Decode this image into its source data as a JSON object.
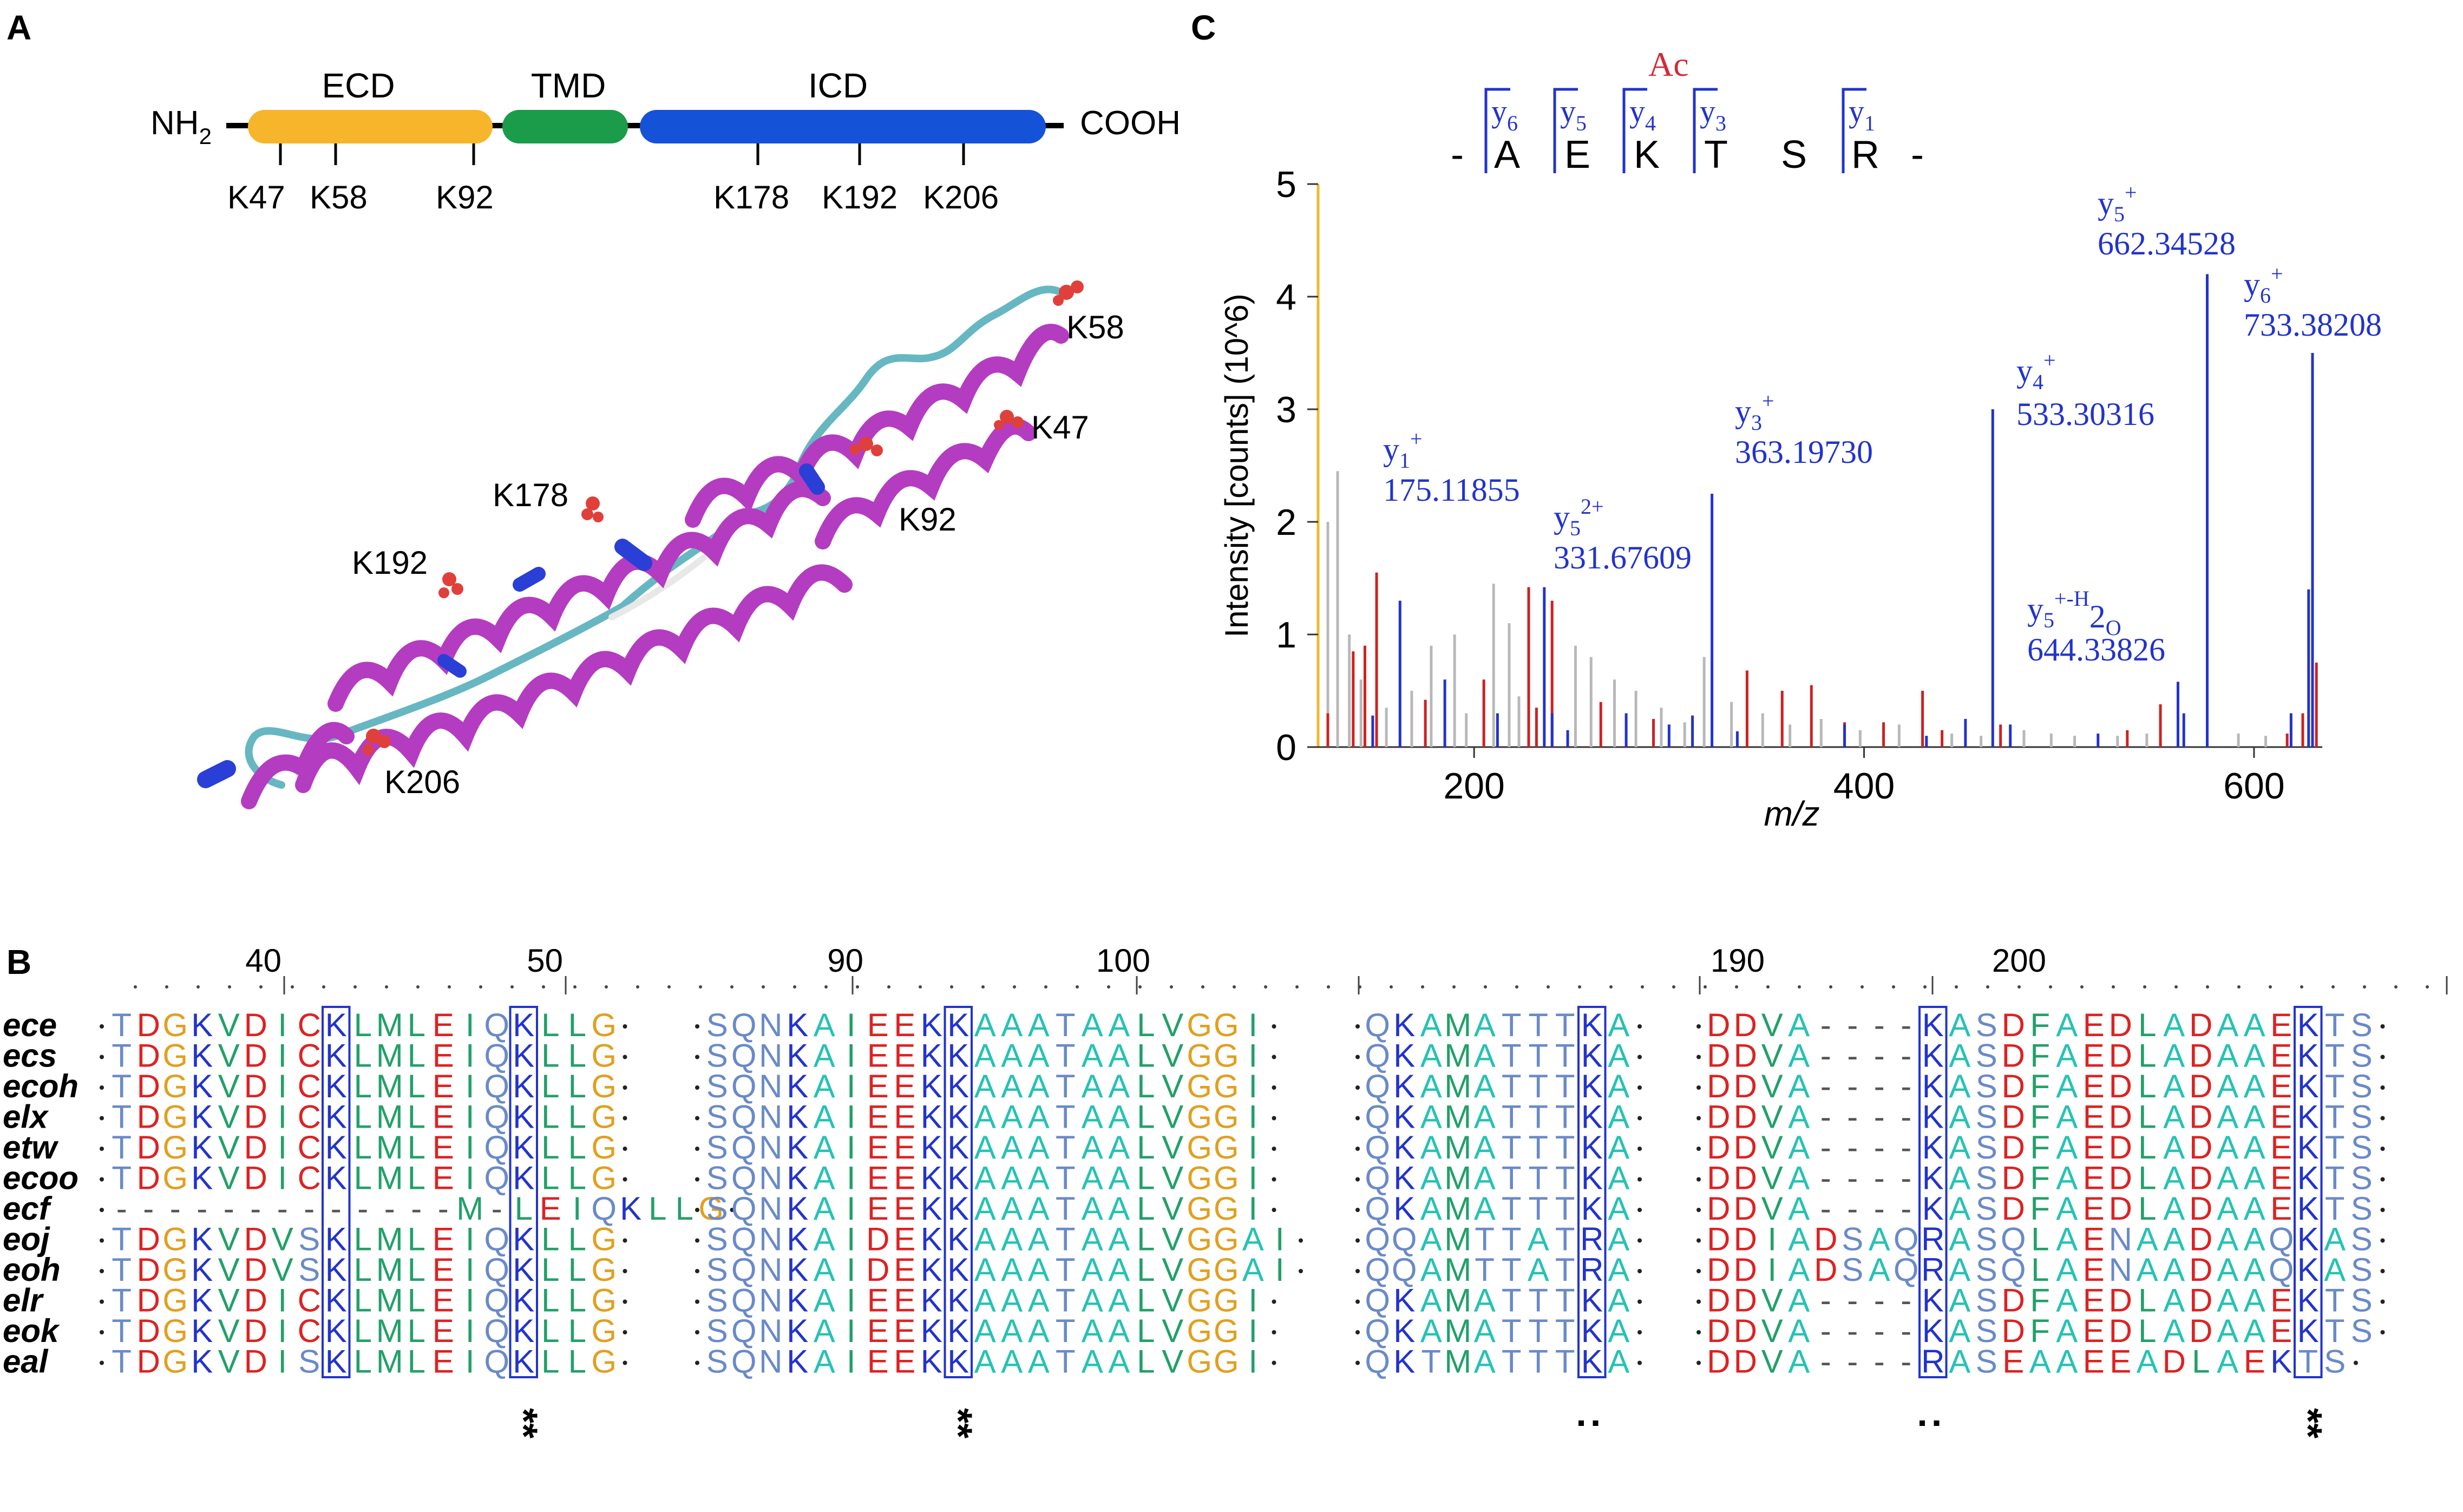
{
  "panels": {
    "a": "A",
    "b": "B",
    "c": "C"
  },
  "panel_a": {
    "nterm": "NH",
    "nterm_sub": "2",
    "cterm": "COOH",
    "domains": [
      {
        "name": "ECD",
        "color": "#f7b52c"
      },
      {
        "name": "TMD",
        "color": "#1a9c4a"
      },
      {
        "name": "ICD",
        "color": "#1452d8"
      }
    ],
    "sites": [
      "K47",
      "K58",
      "K92",
      "K178",
      "K192",
      "K206"
    ],
    "structure_labels": [
      "K58",
      "K47",
      "K178",
      "K92",
      "K192",
      "K206"
    ],
    "structure_colors": {
      "helix": "#b43cc0",
      "turn": "#2a3fd6",
      "coil": "#66b7c2",
      "lysine": "#e0403a"
    }
  },
  "panel_c": {
    "chart_data": {
      "type": "bar",
      "title": "",
      "xlabel": "m/z",
      "ylabel": "Intensity [counts] (10^6)",
      "xlim": [
        120,
        635
      ],
      "ylim": [
        0,
        5
      ],
      "xticks": [
        200,
        400,
        600
      ],
      "yticks": [
        0,
        1,
        2,
        3,
        4,
        5
      ],
      "peptide": {
        "modification": "Ac",
        "prefix": "-",
        "residues": [
          "A",
          "E",
          "K",
          "T",
          "S",
          "R"
        ],
        "suffix": "-",
        "ions": [
          {
            "ion": "y",
            "num": "6"
          },
          {
            "ion": "y",
            "num": "5"
          },
          {
            "ion": "y",
            "num": "4"
          },
          {
            "ion": "y",
            "num": "3"
          },
          {
            "ion": "y",
            "num": "1"
          }
        ]
      },
      "labeled_peaks": [
        {
          "name": "y",
          "sub": "1",
          "sup": "+",
          "mz_text": "175.11855",
          "mz": 148,
          "intensity": 1.55
        },
        {
          "name": "y",
          "sub": "5",
          "sup": "2+",
          "mz_text": "331.67609",
          "mz": 236,
          "intensity": 1.42
        },
        {
          "name": "y",
          "sub": "3",
          "sup": "+",
          "mz_text": "363.19730",
          "mz": 322,
          "intensity": 2.25
        },
        {
          "name": "y",
          "sub": "4",
          "sup": "+",
          "mz_text": "533.30316",
          "mz": 466,
          "intensity": 3.0
        },
        {
          "name": "y",
          "sub": "5",
          "sup": "+-H",
          "sup2": "2",
          "sup3": "O",
          "mz_text": "644.33826",
          "mz": 561,
          "intensity": 0.58
        },
        {
          "name": "y",
          "sub": "5",
          "sup": "+",
          "mz_text": "662.34528",
          "mz": 576,
          "intensity": 4.2
        },
        {
          "name": "y",
          "sub": "6",
          "sup": "+",
          "mz_text": "733.38208",
          "mz": 630,
          "intensity": 3.5
        }
      ],
      "series": [
        {
          "name": "matched",
          "color": "#2233cc",
          "points": [
            [
              148,
              0.28
            ],
            [
              162,
              1.3
            ],
            [
              185,
              0.6
            ],
            [
              212,
              0.3
            ],
            [
              236,
              1.42
            ],
            [
              240,
              0.3
            ],
            [
              248,
              0.15
            ],
            [
              278,
              0.3
            ],
            [
              300,
              0.2
            ],
            [
              312,
              0.28
            ],
            [
              322,
              2.25
            ],
            [
              335,
              0.14
            ],
            [
              390,
              0.2
            ],
            [
              432,
              0.1
            ],
            [
              452,
              0.25
            ],
            [
              466,
              3.0
            ],
            [
              475,
              0.2
            ],
            [
              520,
              0.12
            ],
            [
              561,
              0.58
            ],
            [
              564,
              0.3
            ],
            [
              576,
              4.2
            ],
            [
              630,
              3.5
            ],
            [
              628,
              1.4
            ],
            [
              619,
              0.3
            ]
          ]
        },
        {
          "name": "modified",
          "color": "#cc2222",
          "points": [
            [
              125,
              0.3
            ],
            [
              138,
              0.85
            ],
            [
              144,
              0.9
            ],
            [
              150,
              1.55
            ],
            [
              175,
              0.42
            ],
            [
              205,
              0.6
            ],
            [
              228,
              1.42
            ],
            [
              232,
              0.35
            ],
            [
              240,
              1.3
            ],
            [
              265,
              0.4
            ],
            [
              292,
              0.25
            ],
            [
              340,
              0.68
            ],
            [
              358,
              0.5
            ],
            [
              373,
              0.55
            ],
            [
              390,
              0.22
            ],
            [
              410,
              0.22
            ],
            [
              430,
              0.5
            ],
            [
              440,
              0.15
            ],
            [
              470,
              0.2
            ],
            [
              535,
              0.15
            ],
            [
              552,
              0.38
            ],
            [
              617,
              0.12
            ],
            [
              625,
              0.3
            ],
            [
              632,
              0.75
            ]
          ]
        },
        {
          "name": "unassigned",
          "color": "#b8b8b8",
          "points": [
            [
              125,
              2.0
            ],
            [
              130,
              2.45
            ],
            [
              136,
              1.0
            ],
            [
              142,
              0.6
            ],
            [
              155,
              0.35
            ],
            [
              168,
              0.5
            ],
            [
              178,
              0.9
            ],
            [
              190,
              1.0
            ],
            [
              196,
              0.3
            ],
            [
              210,
              1.45
            ],
            [
              218,
              1.1
            ],
            [
              223,
              0.45
            ],
            [
              252,
              0.9
            ],
            [
              260,
              0.8
            ],
            [
              272,
              0.6
            ],
            [
              283,
              0.5
            ],
            [
              296,
              0.35
            ],
            [
              308,
              0.22
            ],
            [
              318,
              0.8
            ],
            [
              332,
              0.4
            ],
            [
              348,
              0.3
            ],
            [
              362,
              0.2
            ],
            [
              378,
              0.25
            ],
            [
              398,
              0.15
            ],
            [
              418,
              0.2
            ],
            [
              445,
              0.12
            ],
            [
              460,
              0.1
            ],
            [
              482,
              0.15
            ],
            [
              496,
              0.12
            ],
            [
              508,
              0.1
            ],
            [
              530,
              0.1
            ],
            [
              545,
              0.12
            ],
            [
              592,
              0.12
            ],
            [
              606,
              0.1
            ]
          ]
        }
      ]
    }
  },
  "panel_b": {
    "ruler": [
      {
        "ticks": [
          "40",
          "50"
        ],
        "mid": "."
      },
      {
        "ticks": [
          "90",
          "100"
        ]
      },
      {
        "ticks": []
      },
      {
        "ticks": [
          "190",
          "200"
        ]
      }
    ],
    "species": [
      "ece",
      "ecs",
      "ecoh",
      "elx",
      "etw",
      "ecoo",
      "ecf",
      "eoj",
      "eoh",
      "elr",
      "eok",
      "eal"
    ],
    "blocks": [
      [
        "TDGKVDICKLMLEIQKLLG",
        "TDGKVDICKLMLEIQKLLG",
        "TDGKVDICKLMLEIQKLLG",
        "TDGKVDICKLMLEIQKLLG",
        "TDGKVDICKLMLEIQKLLG",
        "TDGKVDICKLMLEIQKLLG",
        "-------------M-LEIQKLLG",
        "TDGKVDVSKLMLEIQKLLG",
        "TDGKVDVSKLMLEIQKLLG",
        "TDGKVDICKLMLEIQKLLG",
        "TDGKVDICKLMLEIQKLLG",
        "TDGKVDISKLMLEIQKLLG"
      ],
      [
        "SQNKAIEEKKAAATAALVGGI",
        "SQNKAIEEKKAAATAALVGGI",
        "SQNKAIEEKKAAATAALVGGI",
        "SQNKAIEEKKAAATAALVGGI",
        "SQNKAIEEKKAAATAALVGGI",
        "SQNKAIEEKKAAATAALVGGI",
        "SQNKAIEEKKAAATAALVGGI",
        "SQNKAIDEKKAAATAALVGGAI",
        "SQNKAIDEKKAAATAALVGGAI",
        "SQNKAIEEKKAAATAALVGGI",
        "SQNKAIEEKKAAATAALVGGI",
        "SQNKAIEEKKAAATAALVGGI"
      ],
      [
        "QKAMATTTKA",
        "QKAMATTTKA",
        "QKAMATTTKA",
        "QKAMATTTKA",
        "QKAMATTTKA",
        "QKAMATTTKA",
        "QKAMATTTKA",
        "QQAMTTATRA",
        "QQAMTTATRA",
        "QKAMATTTKA",
        "QKAMATTTKA",
        "QKTMATTTKA"
      ],
      [
        "DDVA----KASDFAEDLADAAEKTS",
        "DDVA----KASDFAEDLADAAEKTS",
        "DDVA----KASDFAEDLADAAEKTS",
        "DDVA----KASDFAEDLADAAEKTS",
        "DDVA----KASDFAEDLADAAEKTS",
        "DDVA----KASDFAEDLADAAEKTS",
        "DDVA----KASDFAEDLADAAEKTS",
        "DDIADSAQRASQLAENAADAAQKAS",
        "DDIADSAQRASQLAENAADAAQKAS",
        "DDVA----KASDFAEDLADAAEKTS",
        "DDVA----KASDFAEDLADAAEKTS",
        "DDVA----RASEAAEEADLAEKTS"
      ]
    ],
    "markers": [
      "**",
      "**",
      ":",
      ":",
      "**"
    ],
    "residue_colors": {
      "K": "#2233cc",
      "R": "#2233cc",
      "D": "#dd2222",
      "E": "#dd2222",
      "C": "#dd2222",
      "T": "#6a8ac8",
      "S": "#6a8ac8",
      "N": "#6a8ac8",
      "Q": "#6a8ac8",
      "G": "#e0a020",
      "L": "#22a06a",
      "I": "#22a06a",
      "M": "#22a06a",
      "V": "#22a06a",
      "F": "#22a06a",
      "A": "#25c2b4",
      "-": "#555555"
    }
  }
}
